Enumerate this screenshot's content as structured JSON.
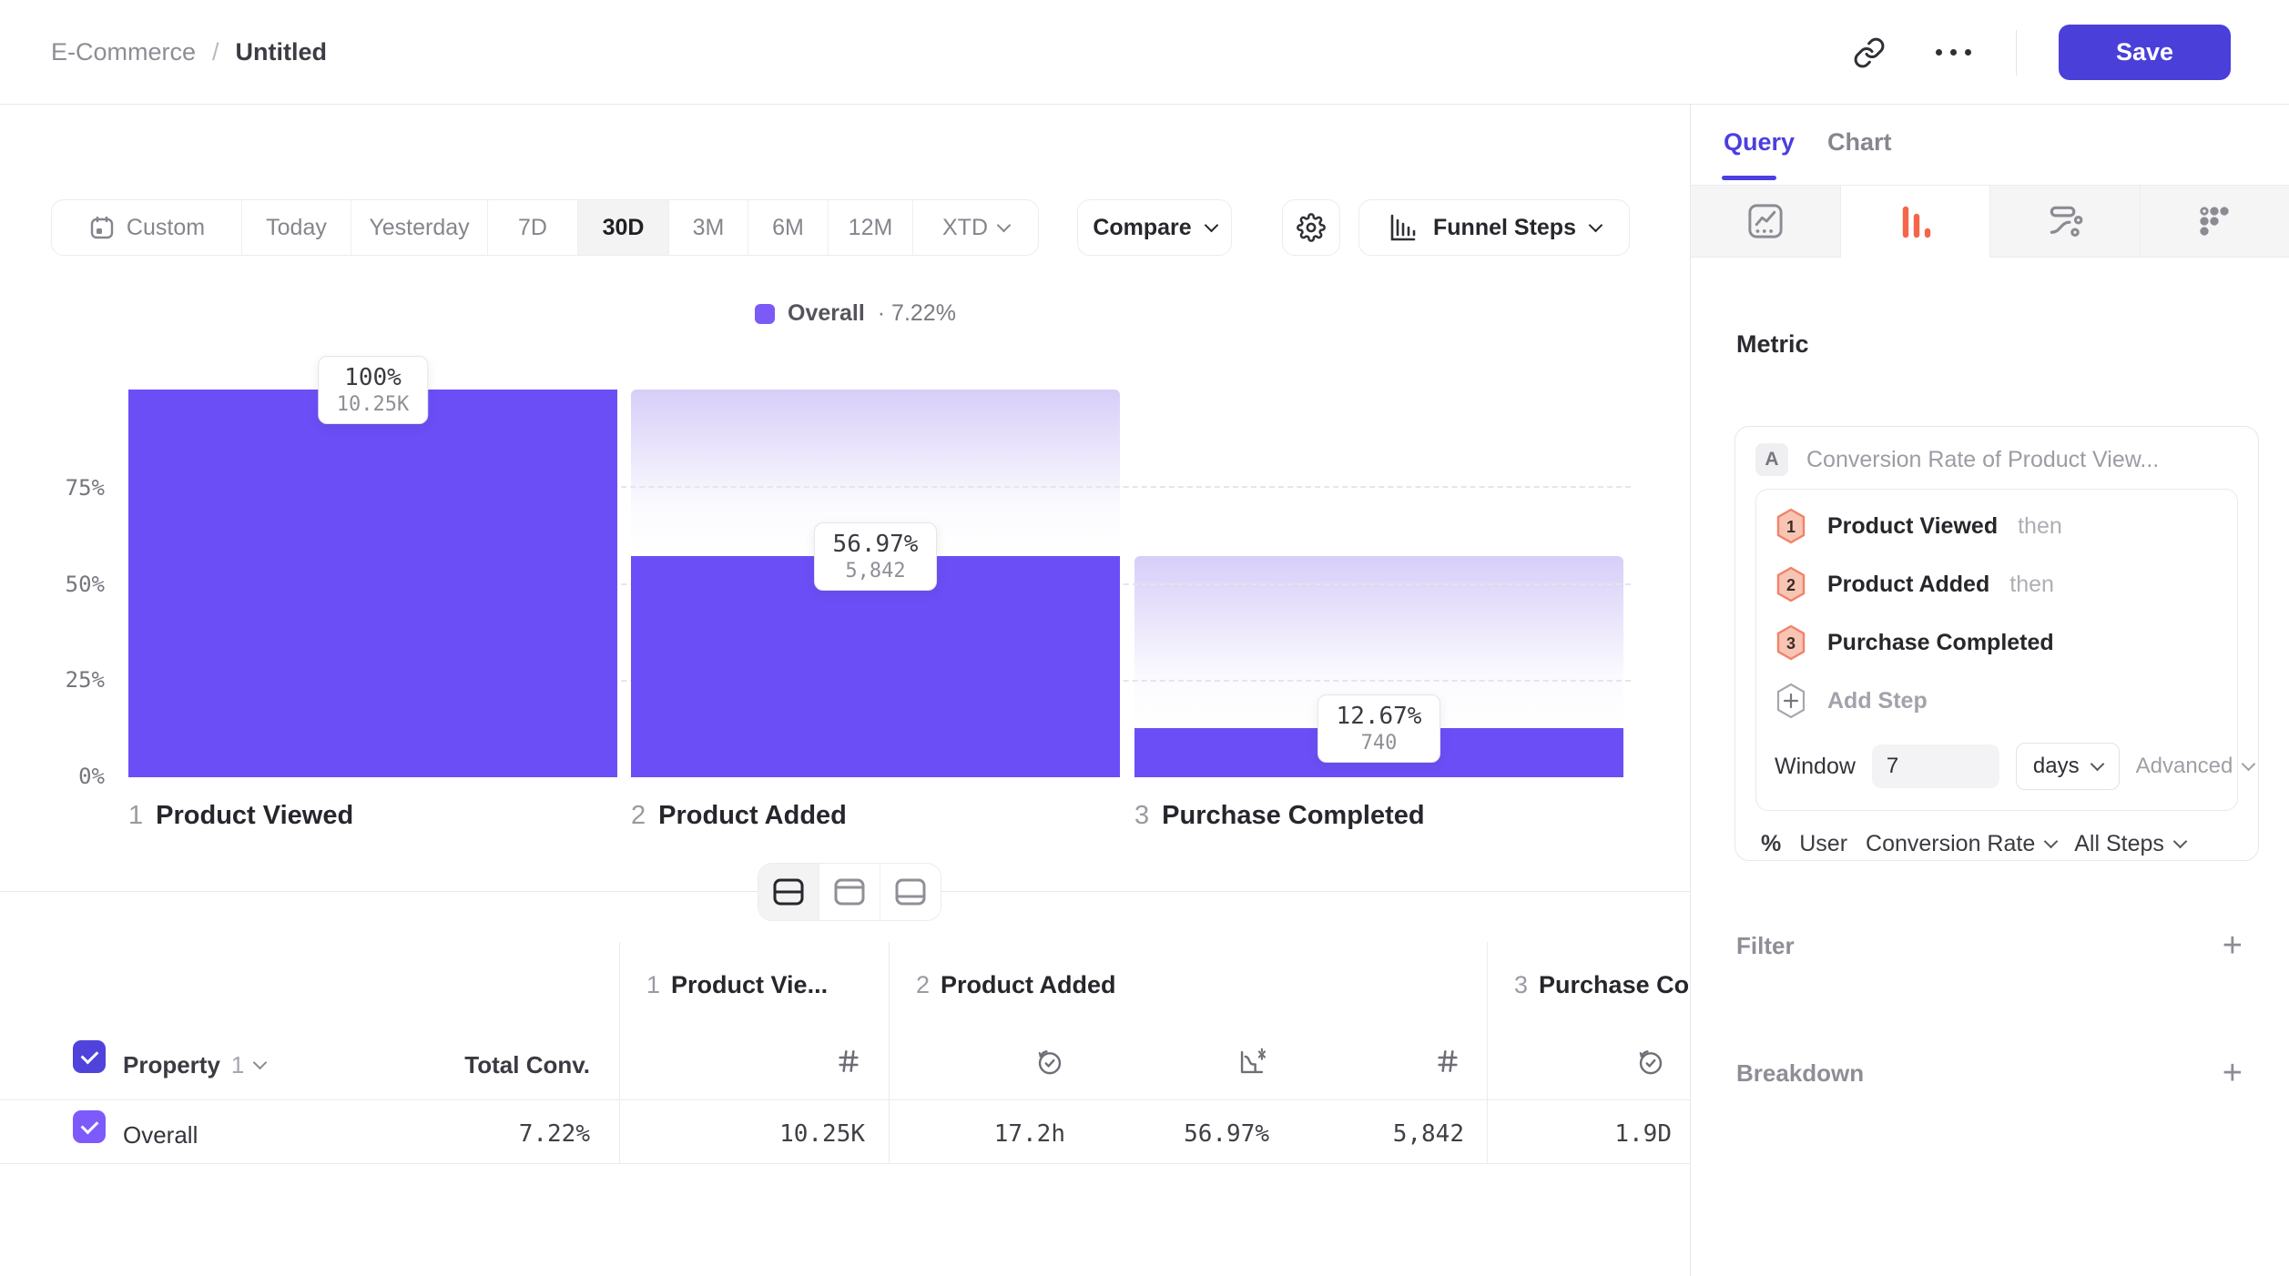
{
  "theme": {
    "accent": "#4A3FD9",
    "bar": "#6C4EF6",
    "swatch": "#7B5AF7",
    "ghost-top": "#D7CEF8",
    "orange": "#F4654A",
    "badge-fill": "#F8C5B4",
    "badge-border": "#F2826A",
    "hdr-check": "#4F43DC",
    "row-check": "#7D5BFA"
  },
  "header": {
    "breadcrumb_parent": "E-Commerce",
    "breadcrumb_sep": "/",
    "breadcrumb_current": "Untitled",
    "save_label": "Save"
  },
  "toolbar": {
    "date_ranges": [
      "Custom",
      "Today",
      "Yesterday",
      "7D",
      "30D",
      "3M",
      "6M",
      "12M",
      "XTD"
    ],
    "selected_range": "30D",
    "compare_label": "Compare",
    "chart_type_label": "Funnel Steps"
  },
  "chart_data": {
    "type": "funnel_bar",
    "legend": {
      "name": "Overall",
      "value": "· 7.22%"
    },
    "y_axis": {
      "ticks_top_to_bottom": [
        "75%",
        "50%",
        "25%",
        "0%"
      ],
      "max_pct": 100,
      "grid": "dashed at 25/50/75"
    },
    "steps": [
      {
        "num": "1",
        "label": "Product Viewed",
        "conversion_pct": 100,
        "pct_label": "100%",
        "count": 10250,
        "count_label": "10.25K"
      },
      {
        "num": "2",
        "label": "Product Added",
        "conversion_pct": 56.97,
        "pct_label": "56.97%",
        "count": 5842,
        "count_label": "5,842"
      },
      {
        "num": "3",
        "label": "Purchase Completed",
        "conversion_pct": 12.67,
        "pct_label": "12.67%",
        "count": 740,
        "count_label": "740"
      }
    ]
  },
  "view_toggle": {
    "options": [
      "split-view",
      "chart-only",
      "table-only"
    ],
    "selected": "split-view"
  },
  "table": {
    "property_label": "Property",
    "property_index": "1",
    "total_conv_label": "Total Conv.",
    "row_label": "Overall",
    "row_total_conv": "7.22%",
    "columns": [
      {
        "num": "1",
        "title": "Product Vie...",
        "cells": [
          {
            "icon": "hash",
            "value": "10.25K"
          }
        ]
      },
      {
        "num": "2",
        "title": "Product Added",
        "cells": [
          {
            "icon": "time-to-convert",
            "value": "17.2h"
          },
          {
            "icon": "conversion-rate",
            "value": "56.97%"
          },
          {
            "icon": "hash",
            "value": "5,842"
          }
        ]
      },
      {
        "num": "3",
        "title": "Purchase Completed",
        "cells": [
          {
            "icon": "time-to-convert",
            "value": "1.9D"
          }
        ]
      }
    ]
  },
  "panel": {
    "tabs": [
      {
        "label": "Query"
      },
      {
        "label": "Chart"
      }
    ],
    "active_tab": "Query",
    "icon_tabs": [
      "insights",
      "funnel",
      "flows",
      "segments"
    ],
    "selected_icon_tab": "funnel",
    "metric_heading": "Metric",
    "metric": {
      "series_badge": "A",
      "series_label": "Conversion Rate of Product View...",
      "steps": [
        {
          "num": "1",
          "label": "Product Viewed",
          "suffix": "then"
        },
        {
          "num": "2",
          "label": "Product Added",
          "suffix": "then"
        },
        {
          "num": "3",
          "label": "Purchase Completed",
          "suffix": ""
        }
      ],
      "add_step_label": "Add Step",
      "window_label": "Window",
      "window_value": "7",
      "window_unit": "days",
      "advanced_label": "Advanced",
      "measured_as": {
        "symbol": "%",
        "entity": "User",
        "metric": "Conversion Rate",
        "scope": "All Steps"
      }
    },
    "sections": [
      {
        "label": "Filter"
      },
      {
        "label": "Breakdown"
      }
    ]
  }
}
